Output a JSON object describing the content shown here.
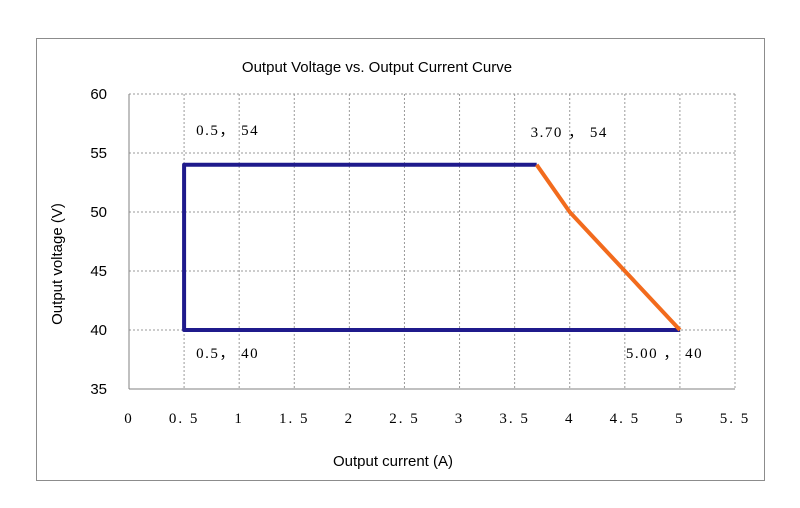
{
  "chart_data": {
    "type": "line",
    "title": "Output Voltage vs. Output Current  Curve",
    "xlabel": "Output current (A)",
    "ylabel": "Output voltage (V)",
    "xlim": [
      0,
      5.5
    ],
    "ylim": [
      35,
      60
    ],
    "x_ticks": [
      "0",
      "0.5",
      "1",
      "1.5",
      "2",
      "2.5",
      "3",
      "3.5",
      "4",
      "4.5",
      "5",
      "5.5"
    ],
    "y_ticks": [
      "60",
      "55",
      "50",
      "45",
      "40",
      "35"
    ],
    "grid": true,
    "series": [
      {
        "color": "#1F1A8C",
        "points": [
          [
            3.7,
            54
          ],
          [
            0.5,
            54
          ],
          [
            0.5,
            40
          ],
          [
            5.0,
            40
          ]
        ]
      },
      {
        "color": "#F26B1D",
        "points": [
          [
            3.7,
            54
          ],
          [
            4.0,
            50
          ],
          [
            4.2,
            48
          ],
          [
            5.0,
            40
          ]
        ]
      }
    ],
    "annotations": [
      {
        "text": "0.5， 54",
        "x": 0.5,
        "y": 54
      },
      {
        "text": "3.70 ， 54",
        "x": 3.7,
        "y": 54
      },
      {
        "text": "0.5， 40",
        "x": 0.5,
        "y": 40
      },
      {
        "text": "5.00 ， 40",
        "x": 5.0,
        "y": 40
      }
    ]
  }
}
